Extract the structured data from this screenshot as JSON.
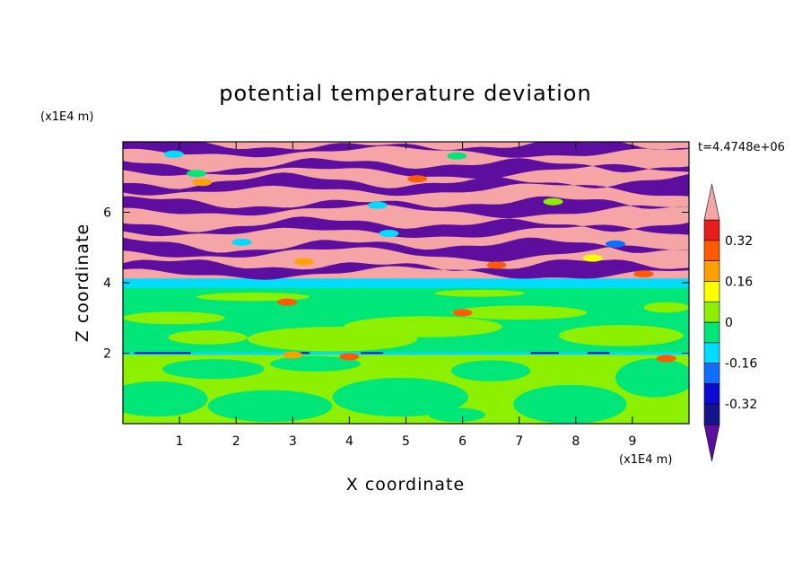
{
  "chart_data": {
    "type": "heatmap",
    "title": "potential temperature deviation",
    "xlabel": "X coordinate",
    "ylabel": "Z coordinate",
    "x_unit": "(x1E4 m)",
    "y_unit": "(x1E4 m)",
    "time_label": "t=4.4748e+06",
    "xlim": [
      0,
      10
    ],
    "ylim": [
      0,
      8
    ],
    "x_ticks": [
      "1",
      "2",
      "3",
      "4",
      "5",
      "6",
      "7",
      "8",
      "9"
    ],
    "y_ticks": [
      "2",
      "4",
      "6"
    ],
    "colorbar": {
      "labels": [
        "0.32",
        "0.16",
        "0",
        "-0.16",
        "-0.32"
      ],
      "label_values": [
        0.32,
        0.16,
        0,
        -0.16,
        -0.32
      ],
      "levels": [
        -0.4,
        -0.32,
        -0.24,
        -0.16,
        -0.08,
        0,
        0.08,
        0.16,
        0.24,
        0.32,
        0.4
      ],
      "colors": [
        "#5e0e9e",
        "#14148c",
        "#0a0ad2",
        "#0f6eff",
        "#00dcff",
        "#00e678",
        "#8cf000",
        "#ffff00",
        "#ffa000",
        "#ff5a00",
        "#e61e1e",
        "#f5a5a5"
      ]
    },
    "regions": [
      {
        "z_range": [
          0,
          2
        ],
        "description": "lower layer",
        "dominant": [
          0,
          0.08
        ],
        "secondary": [
          0.08,
          0.16
        ]
      },
      {
        "z_range": [
          2,
          4
        ],
        "description": "middle layer",
        "dominant": [
          0.08,
          0.16
        ],
        "secondary": [
          0,
          0.08
        ]
      },
      {
        "z_range": [
          4,
          8
        ],
        "description": "upper banded layer",
        "dominant": [
          0.4,
          0.5
        ],
        "secondary": [
          -0.5,
          -0.4
        ]
      }
    ]
  }
}
